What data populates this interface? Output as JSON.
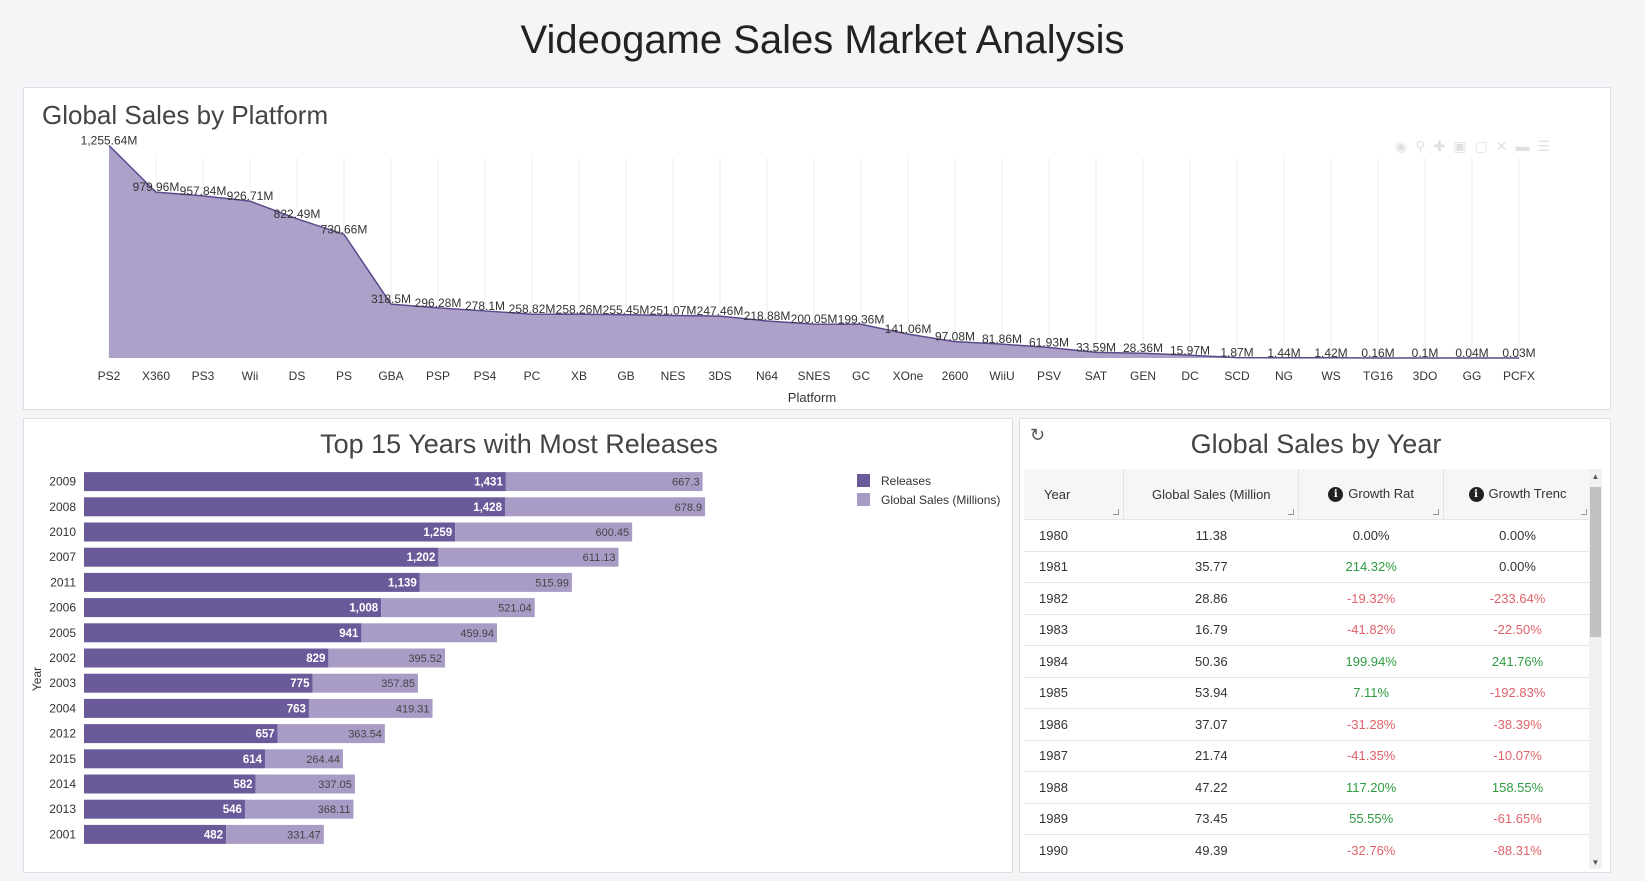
{
  "page": {
    "title": "Videogame Sales Market Analysis"
  },
  "platform_panel": {
    "title": "Global Sales by Platform",
    "xlabel": "Platform"
  },
  "years_panel": {
    "title": "Top 15 Years with Most Releases",
    "ylabel": "Year"
  },
  "table_panel": {
    "title": "Global Sales by Year",
    "headers": [
      "Year",
      "Global Sales (Million",
      "Growth Rat",
      "Growth Trenc"
    ],
    "rows": [
      [
        "1980",
        "11.38",
        "0.00%",
        "0.00%"
      ],
      [
        "1981",
        "35.77",
        "214.32%",
        "0.00%"
      ],
      [
        "1982",
        "28.86",
        "-19.32%",
        "-233.64%"
      ],
      [
        "1983",
        "16.79",
        "-41.82%",
        "-22.50%"
      ],
      [
        "1984",
        "50.36",
        "199.94%",
        "241.76%"
      ],
      [
        "1985",
        "53.94",
        "7.11%",
        "-192.83%"
      ],
      [
        "1986",
        "37.07",
        "-31.28%",
        "-38.39%"
      ],
      [
        "1987",
        "21.74",
        "-41.35%",
        "-10.07%"
      ],
      [
        "1988",
        "47.22",
        "117.20%",
        "158.55%"
      ],
      [
        "1989",
        "73.45",
        "55.55%",
        "-61.65%"
      ],
      [
        "1990",
        "49.39",
        "-32.76%",
        "-88.31%"
      ]
    ]
  },
  "colors": {
    "dark": "#6a5a9a",
    "light": "#a89cc6",
    "area": "#ada1c9",
    "line": "#5a4a8a",
    "pos": "#2e9b3f",
    "neg": "#e0626a"
  },
  "chart_data": [
    {
      "type": "area",
      "title": "Global Sales by Platform",
      "xlabel": "Platform",
      "categories": [
        "PS2",
        "X360",
        "PS3",
        "Wii",
        "DS",
        "PS",
        "GBA",
        "PSP",
        "PS4",
        "PC",
        "XB",
        "GB",
        "NES",
        "3DS",
        "N64",
        "SNES",
        "GC",
        "XOne",
        "2600",
        "WiiU",
        "PSV",
        "SAT",
        "GEN",
        "DC",
        "SCD",
        "NG",
        "WS",
        "TG16",
        "3DO",
        "GG",
        "PCFX"
      ],
      "values": [
        1255.64,
        979.96,
        957.84,
        926.71,
        822.49,
        730.66,
        318.5,
        296.28,
        278.1,
        258.82,
        258.26,
        255.45,
        251.07,
        247.46,
        218.88,
        200.05,
        199.36,
        141.06,
        97.08,
        81.86,
        61.93,
        33.59,
        28.36,
        15.97,
        1.87,
        1.44,
        1.42,
        0.16,
        0.1,
        0.04,
        0.03
      ],
      "labels": [
        "1,255.64M",
        "979.96M",
        "957.84M",
        "926.71M",
        "822.49M",
        "730.66M",
        "318.5M",
        "296.28M",
        "278.1M",
        "258.82M",
        "258.26M",
        "255.45M",
        "251.07M",
        "247.46M",
        "218.88M",
        "200.05M",
        "199.36M",
        "141.06M",
        "97.08M",
        "81.86M",
        "61.93M",
        "33.59M",
        "28.36M",
        "15.97M",
        "1.87M",
        "1.44M",
        "1.42M",
        "0.16M",
        "0.1M",
        "0.04M",
        "0.03M"
      ],
      "ylim": [
        0,
        1300
      ],
      "grid": "vertical"
    },
    {
      "type": "bar",
      "orientation": "horizontal",
      "stacked": true,
      "title": "Top 15 Years with Most Releases",
      "ylabel": "Year",
      "legend_position": "top-right",
      "categories": [
        "2009",
        "2008",
        "2010",
        "2007",
        "2011",
        "2006",
        "2005",
        "2002",
        "2003",
        "2004",
        "2012",
        "2015",
        "2014",
        "2013",
        "2001"
      ],
      "series": [
        {
          "name": "Releases",
          "values": [
            1431,
            1428,
            1259,
            1202,
            1139,
            1008,
            941,
            829,
            775,
            763,
            657,
            614,
            582,
            546,
            482
          ],
          "labels": [
            "1,431",
            "1,428",
            "1,259",
            "1,202",
            "1,139",
            "1,008",
            "941",
            "829",
            "775",
            "763",
            "657",
            "614",
            "582",
            "546",
            "482"
          ]
        },
        {
          "name": "Global Sales (Millions)",
          "values": [
            667.3,
            678.9,
            600.45,
            611.13,
            515.99,
            521.04,
            459.94,
            395.52,
            357.85,
            419.31,
            363.54,
            264.44,
            337.05,
            368.11,
            331.47
          ],
          "labels": [
            "667.3",
            "678.9",
            "600.45",
            "611.13",
            "515.99",
            "521.04",
            "459.94",
            "395.52",
            "357.85",
            "419.31",
            "363.54",
            "264.44",
            "337.05",
            "368.11",
            "331.47"
          ]
        }
      ]
    }
  ]
}
